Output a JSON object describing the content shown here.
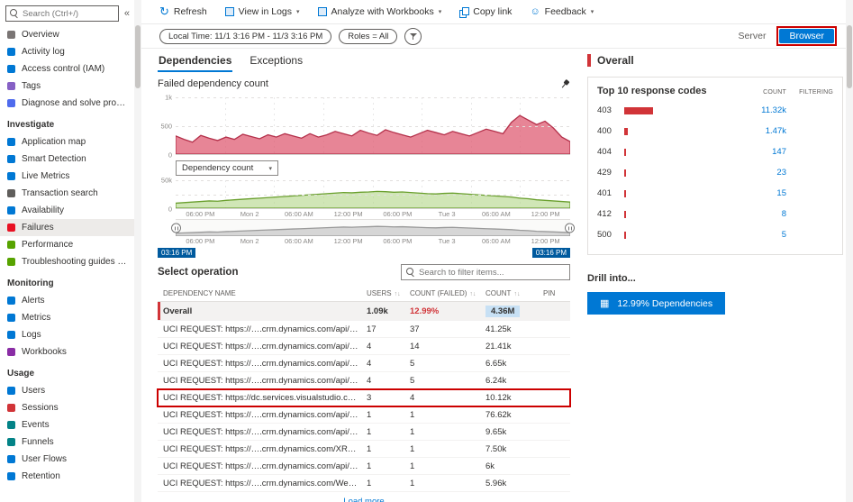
{
  "colors": {
    "accent": "#0078d4",
    "error_red": "#d13438",
    "annotation_red": "#cc0000",
    "failed_chart_stroke": "#b4304a",
    "failed_chart_fill": "rgba(223,92,115,0.75)",
    "count_chart_stroke": "#6a9f2e",
    "count_chart_fill": "rgba(176,213,134,0.6)",
    "brush_stroke": "#9a9a9a",
    "brush_fill": "rgba(170,170,170,0.45)",
    "count_highlight_bg": "#c7e0f4"
  },
  "sidebar": {
    "search": {
      "placeholder": "Search (Ctrl+/)"
    },
    "collapse_icon": "«",
    "groups": [
      {
        "header": "",
        "items": [
          {
            "label": "Overview",
            "icon": "overview-icon",
            "color": "#7a7574"
          },
          {
            "label": "Activity log",
            "icon": "activity-log-icon",
            "color": "#0078d4"
          },
          {
            "label": "Access control (IAM)",
            "icon": "access-control-icon",
            "color": "#0078d4"
          },
          {
            "label": "Tags",
            "icon": "tags-icon",
            "color": "#8661c5"
          },
          {
            "label": "Diagnose and solve problems",
            "icon": "diagnose-icon",
            "color": "#4f6bed"
          }
        ]
      },
      {
        "header": "Investigate",
        "items": [
          {
            "label": "Application map",
            "icon": "application-map-icon",
            "color": "#0078d4"
          },
          {
            "label": "Smart Detection",
            "icon": "smart-detection-icon",
            "color": "#0078d4"
          },
          {
            "label": "Live Metrics",
            "icon": "live-metrics-icon",
            "color": "#0078d4"
          },
          {
            "label": "Transaction search",
            "icon": "transaction-search-icon",
            "color": "#605e5c"
          },
          {
            "label": "Availability",
            "icon": "availability-icon",
            "color": "#0078d4"
          },
          {
            "label": "Failures",
            "icon": "failures-icon",
            "color": "#e81123",
            "selected": true
          },
          {
            "label": "Performance",
            "icon": "performance-icon",
            "color": "#57a300"
          },
          {
            "label": "Troubleshooting guides (previ...",
            "icon": "troubleshooting-guides-icon",
            "color": "#57a300"
          }
        ]
      },
      {
        "header": "Monitoring",
        "items": [
          {
            "label": "Alerts",
            "icon": "alerts-icon",
            "color": "#0078d4"
          },
          {
            "label": "Metrics",
            "icon": "metrics-icon",
            "color": "#0078d4"
          },
          {
            "label": "Logs",
            "icon": "logs-icon",
            "color": "#0078d4"
          },
          {
            "label": "Workbooks",
            "icon": "workbooks-icon",
            "color": "#8a2da5"
          }
        ]
      },
      {
        "header": "Usage",
        "items": [
          {
            "label": "Users",
            "icon": "users-icon",
            "color": "#0078d4"
          },
          {
            "label": "Sessions",
            "icon": "sessions-icon",
            "color": "#d13438"
          },
          {
            "label": "Events",
            "icon": "events-icon",
            "color": "#038387"
          },
          {
            "label": "Funnels",
            "icon": "funnels-icon",
            "color": "#038387"
          },
          {
            "label": "User Flows",
            "icon": "user-flows-icon",
            "color": "#0078d4"
          },
          {
            "label": "Retention",
            "icon": "retention-icon",
            "color": "#0078d4"
          }
        ]
      }
    ]
  },
  "toolbar": {
    "refresh": "Refresh",
    "view_in_logs": "View in Logs",
    "analyze": "Analyze with Workbooks",
    "copy_link": "Copy link",
    "feedback": "Feedback"
  },
  "filterbar": {
    "time_range": "Local Time: 11/1 3:16 PM - 11/3 3:16 PM",
    "roles": "Roles = All",
    "server_button": "Server",
    "browser_button": "Browser"
  },
  "tabs": [
    {
      "label": "Dependencies",
      "active": true
    },
    {
      "label": "Exceptions",
      "active": false
    }
  ],
  "chart": {
    "title": "Failed dependency count",
    "dropdown_label": "Dependency count",
    "brush_start": "03:16 PM",
    "brush_end": "03:16 PM"
  },
  "chart_data": [
    {
      "type": "area",
      "title": "Failed dependency count",
      "ylim": [
        0,
        1000
      ],
      "yticks": [
        "1k",
        "500",
        "0"
      ],
      "x_labels": [
        "06:00 PM",
        "Mon 2",
        "06:00 AM",
        "12:00 PM",
        "06:00 PM",
        "Tue 3",
        "06:00 AM",
        "12:00 PM"
      ],
      "values": [
        320,
        260,
        210,
        330,
        280,
        240,
        300,
        260,
        350,
        310,
        270,
        340,
        300,
        360,
        320,
        280,
        360,
        300,
        340,
        400,
        360,
        320,
        420,
        370,
        330,
        430,
        380,
        340,
        300,
        360,
        420,
        380,
        340,
        400,
        360,
        320,
        380,
        440,
        400,
        360,
        560,
        680,
        600,
        520,
        580,
        460,
        300,
        220
      ]
    },
    {
      "type": "area",
      "title": "Dependency count",
      "ylim": [
        0,
        50000
      ],
      "yticks": [
        "50k",
        "0"
      ],
      "x_labels": [
        "06:00 PM",
        "Mon 2",
        "06:00 AM",
        "12:00 PM",
        "06:00 PM",
        "Tue 3",
        "06:00 AM",
        "12:00 PM"
      ],
      "values": [
        9000,
        10000,
        11000,
        12000,
        13000,
        12500,
        14000,
        15000,
        16000,
        17000,
        18000,
        19000,
        20000,
        21000,
        22000,
        23000,
        24000,
        25000,
        26000,
        27000,
        28000,
        27500,
        28500,
        29000,
        30000,
        29500,
        28500,
        29000,
        28000,
        27000,
        26000,
        25500,
        26500,
        27000,
        26000,
        25000,
        24000,
        23000,
        22000,
        21000,
        20000,
        18000,
        17000,
        15000,
        14000,
        13000,
        12000,
        11000
      ]
    }
  ],
  "operations": {
    "heading": "Select operation",
    "search_placeholder": "Search to filter items...",
    "columns": [
      "DEPENDENCY NAME",
      "USERS",
      "COUNT (FAILED)",
      "COUNT",
      "PIN"
    ],
    "rows": [
      {
        "name": "Overall",
        "users": "1.09k",
        "failed": "12.99%",
        "count": "4.36M",
        "overall": true
      },
      {
        "name": "UCI REQUEST: https://….crm.dynamics.com/api/data/v9.0/",
        "users": "17",
        "failed": "37",
        "count": "41.25k"
      },
      {
        "name": "UCI REQUEST: https://….crm.dynamics.com/api/data/v9.0/",
        "users": "4",
        "failed": "14",
        "count": "21.41k"
      },
      {
        "name": "UCI REQUEST: https://….crm.dynamics.com/api/data/v9.0/",
        "users": "4",
        "failed": "5",
        "count": "6.65k"
      },
      {
        "name": "UCI REQUEST: https://….crm.dynamics.com/api/data/v9.1/",
        "users": "4",
        "failed": "5",
        "count": "6.24k"
      },
      {
        "name": "UCI REQUEST: https://dc.services.visualstudio.com/v2/track",
        "users": "3",
        "failed": "4",
        "count": "10.12k",
        "highlight": true
      },
      {
        "name": "UCI REQUEST: https://….crm.dynamics.com/api/data/v9.0/",
        "users": "1",
        "failed": "1",
        "count": "76.62k"
      },
      {
        "name": "UCI REQUEST: https://….crm.dynamics.com/api/data/v9.1/",
        "users": "1",
        "failed": "1",
        "count": "9.65k"
      },
      {
        "name": "UCI REQUEST: https://….crm.dynamics.com/XRMServices/…",
        "users": "1",
        "failed": "1",
        "count": "7.50k"
      },
      {
        "name": "UCI REQUEST: https://….crm.dynamics.com/api/data/v9.0/",
        "users": "1",
        "failed": "1",
        "count": "6k"
      },
      {
        "name": "UCI REQUEST: https://….crm.dynamics.com/WebResources…",
        "users": "1",
        "failed": "1",
        "count": "5.96k"
      }
    ],
    "load_more": "Load more"
  },
  "right_panel": {
    "title": "Overall",
    "codes": {
      "title": "Top 10 response codes",
      "col_count": "COUNT",
      "col_filtering": "FILTERING",
      "rows": [
        {
          "code": "403",
          "count": "11.32k",
          "value": 11320
        },
        {
          "code": "400",
          "count": "1.47k",
          "value": 1470
        },
        {
          "code": "404",
          "count": "147",
          "value": 147
        },
        {
          "code": "429",
          "count": "23",
          "value": 23
        },
        {
          "code": "401",
          "count": "15",
          "value": 15
        },
        {
          "code": "412",
          "count": "8",
          "value": 8
        },
        {
          "code": "500",
          "count": "5",
          "value": 5
        }
      ]
    },
    "drill": {
      "label": "Drill into...",
      "button": "12.99% Dependencies"
    }
  }
}
